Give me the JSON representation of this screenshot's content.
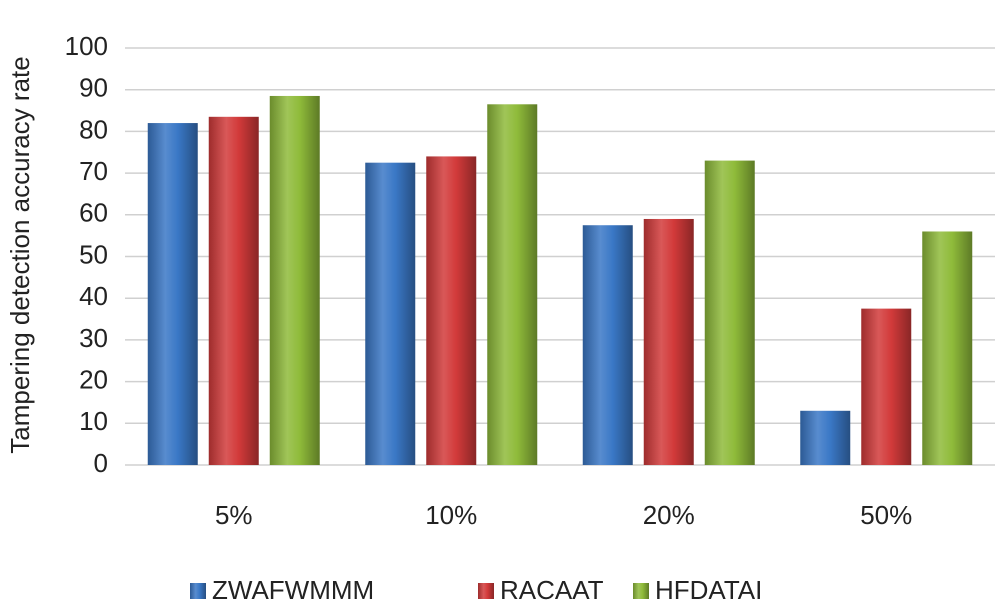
{
  "chart_data": {
    "type": "bar",
    "y_label": "Tampering detection accuracy rate",
    "categories": [
      "5%",
      "10%",
      "20%",
      "50%"
    ],
    "series": [
      {
        "name": "ZWAFWMMM",
        "color": "#3a78c6",
        "values": [
          82,
          72.5,
          57.5,
          13
        ]
      },
      {
        "name": "RACAAT",
        "color": "#d23a3a",
        "values": [
          83.5,
          74,
          59,
          37.5
        ]
      },
      {
        "name": "HFDATAI",
        "color": "#8fbb3a",
        "values": [
          88.5,
          86.5,
          73,
          56
        ]
      }
    ],
    "ylim": [
      0,
      100
    ],
    "yticks": [
      0,
      10,
      20,
      30,
      40,
      50,
      60,
      70,
      80,
      90,
      100
    ],
    "grid": true
  }
}
